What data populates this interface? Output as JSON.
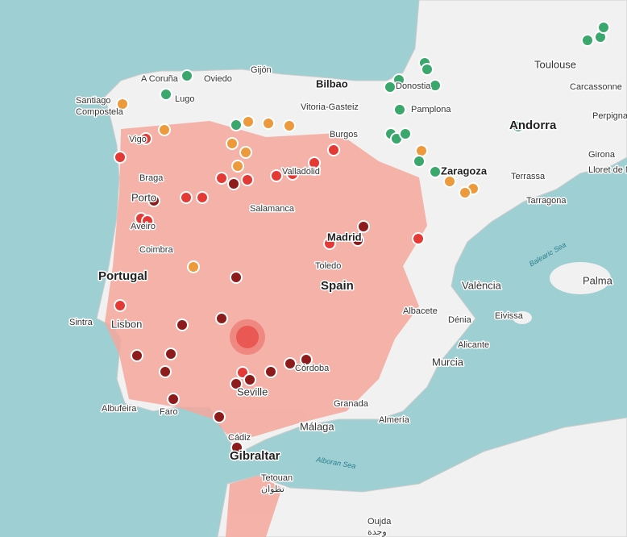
{
  "map": {
    "labels": [
      "A Coruña",
      "Oviedo",
      "Gijón",
      "Bilbao",
      "Toulouse",
      "Santiago",
      "Compostela",
      "Lugo",
      "Vitoria-Gasteiz",
      "Donostia",
      "Pamplona",
      "Carcassonne",
      "Perpignan",
      "Andorra",
      "Burgos",
      "Vigo",
      "Braga",
      "Porto",
      "Aveiro",
      "Valladolid",
      "Zaragoza",
      "Girona",
      "Terrassa",
      "Lloret de Mar",
      "Salamanca",
      "Tarragona",
      "Madrid",
      "Coimbra",
      "Portugal",
      "Toledo",
      "Spain",
      "València",
      "Balearic Sea",
      "Palma",
      "Sintra",
      "Lisbon",
      "Albacete",
      "Eivissa",
      "Dénia",
      "Alicante",
      "Murcia",
      "Córdoba",
      "Seville",
      "Albufeira",
      "Faro",
      "Granada",
      "Almería",
      "Málaga",
      "Cádiz",
      "Gibraltar",
      "Alboran Sea",
      "Tetouan",
      "تطوان",
      "Oujda",
      "وجدة"
    ]
  }
}
